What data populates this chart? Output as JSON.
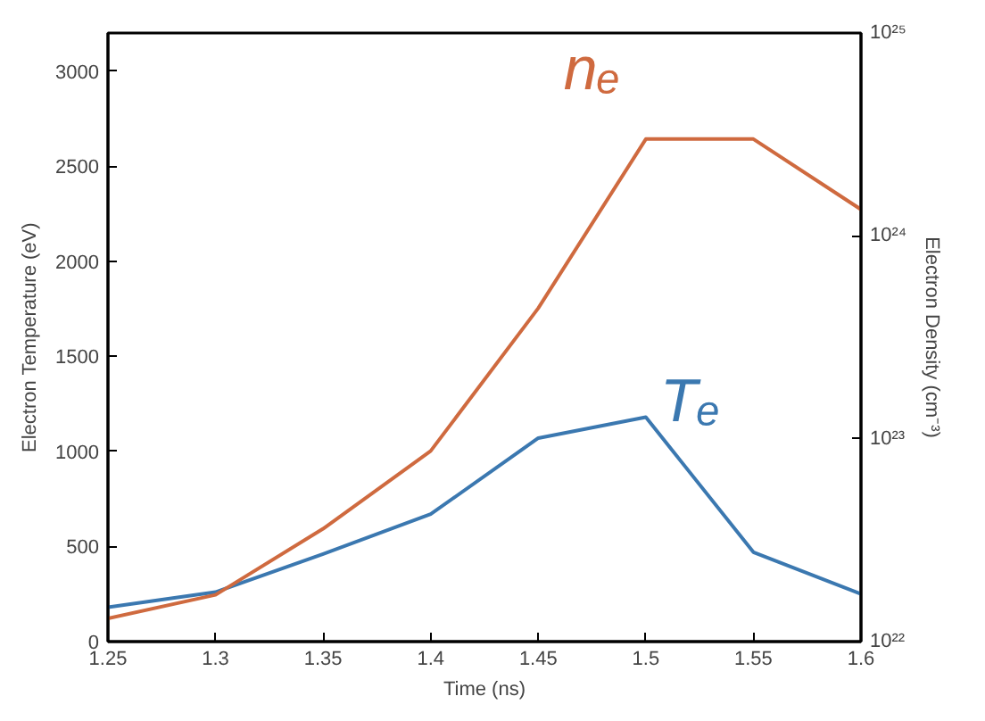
{
  "chart_data": {
    "type": "line",
    "xlabel": "Time (ns)",
    "ylabel": "Electron Temperature (eV)",
    "y2label": "Electron Density (cm⁻³)",
    "x": [
      1.25,
      1.3,
      1.35,
      1.4,
      1.45,
      1.5,
      1.55,
      1.6
    ],
    "series": [
      {
        "name": "Tₑ",
        "color": "#3b78b0",
        "values": [
          180,
          260,
          460,
          670,
          1070,
          1180,
          470,
          250
        ]
      },
      {
        "name": "nₑ",
        "color": "#cf6a3f",
        "axis": "y2",
        "values": [
          1.3e+22,
          1.7e+22,
          3.6e+22,
          8.7e+22,
          4.4e+23,
          3e+24,
          3e+24,
          1.35e+24
        ]
      }
    ],
    "xlim": [
      1.25,
      1.6
    ],
    "xticks": [
      1.25,
      1.3,
      1.35,
      1.4,
      1.45,
      1.5,
      1.55,
      1.6
    ],
    "ylim": [
      0,
      3200
    ],
    "yticks": [
      0,
      500,
      1000,
      1500,
      2000,
      2500,
      3000
    ],
    "y2lim": [
      1e+22,
      1e+25
    ],
    "y2ticks": [
      {
        "value": 1e+22,
        "label": "10²²"
      },
      {
        "value": 1e+23,
        "label": "10²³"
      },
      {
        "value": 1e+24,
        "label": "10²⁴"
      },
      {
        "value": 1e+25,
        "label": "10²⁵"
      }
    ],
    "log": "y2",
    "grid": false,
    "marker": "none",
    "line_style": "solid"
  }
}
